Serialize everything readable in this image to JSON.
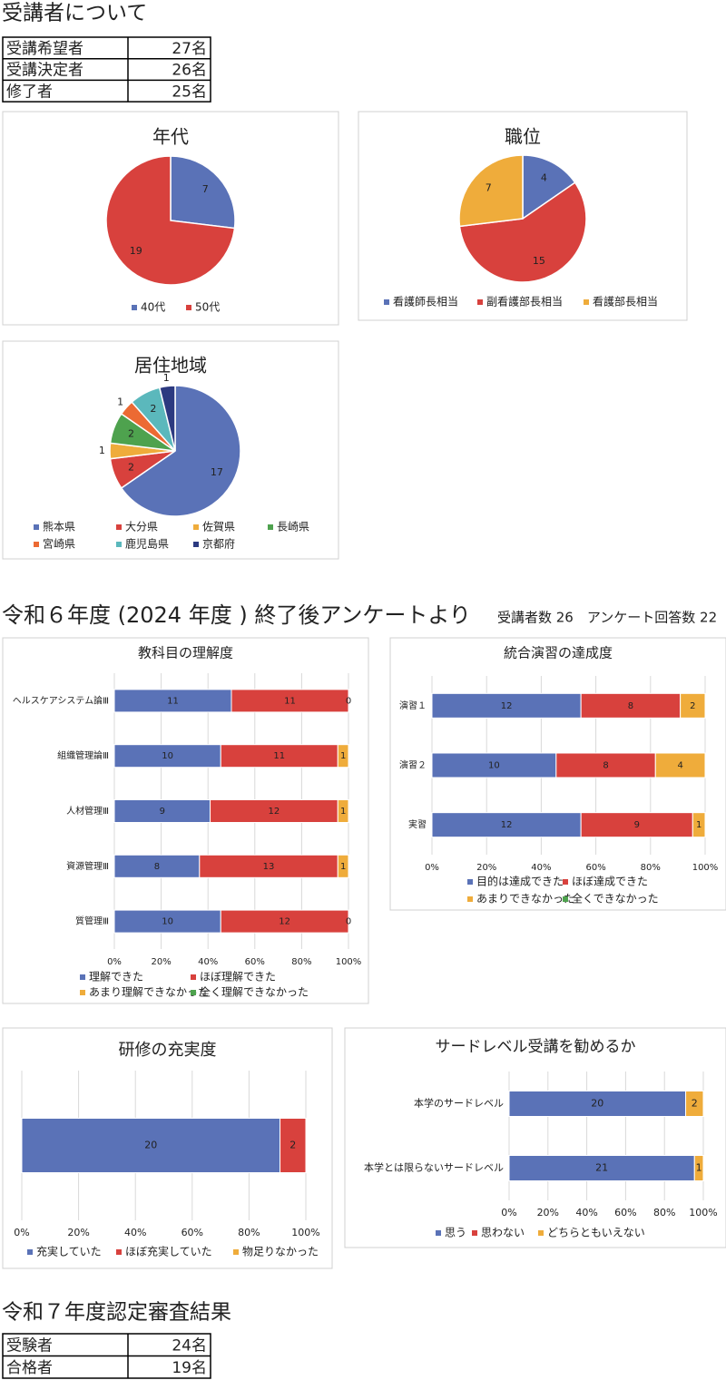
{
  "header": {
    "title": "受講者について"
  },
  "table1": {
    "rows": [
      [
        "受講希望者",
        "27名"
      ],
      [
        "受講決定者",
        "26名"
      ],
      [
        "修了者",
        "25名"
      ]
    ]
  },
  "survey": {
    "title": "令和６年度 (2024 年度 ) 終了後アンケートより",
    "note": "受講者数 26　アンケート回答数 22"
  },
  "table2": {
    "title": "令和７年度認定審査結果",
    "rows": [
      [
        "受験者",
        "24名"
      ],
      [
        "合格者",
        "19名"
      ]
    ]
  },
  "chart_data": [
    {
      "type": "pie",
      "title": "年代",
      "categories": [
        "40代",
        "50代"
      ],
      "values": [
        7,
        19
      ],
      "colors": [
        "#5a72b7",
        "#d8413d"
      ],
      "legend": "bottom"
    },
    {
      "type": "pie",
      "title": "職位",
      "categories": [
        "看護師長相当",
        "副看護部長相当",
        "看護部長相当"
      ],
      "values": [
        4,
        15,
        7
      ],
      "colors": [
        "#5a72b7",
        "#d8413d",
        "#efac3b"
      ],
      "legend": "bottom"
    },
    {
      "type": "pie",
      "title": "居住地域",
      "categories": [
        "熊本県",
        "大分県",
        "佐賀県",
        "長崎県",
        "宮崎県",
        "鹿児島県",
        "京都府"
      ],
      "values": [
        17,
        2,
        1,
        2,
        1,
        2,
        1
      ],
      "colors": [
        "#5a72b7",
        "#d8413d",
        "#efac3b",
        "#4ea24e",
        "#ec6a33",
        "#5bb8bc",
        "#2c3a80"
      ],
      "legend": "bottom"
    },
    {
      "type": "bar",
      "orientation": "horizontal",
      "stacking": "percent",
      "title": "教科目の理解度",
      "categories": [
        "ヘルスケアシステム論Ⅲ",
        "組織管理論Ⅲ",
        "人材管理Ⅲ",
        "資源管理Ⅲ",
        "質管理Ⅲ"
      ],
      "series": [
        {
          "name": "理解できた",
          "color": "#5a72b7",
          "values": [
            11,
            10,
            9,
            8,
            10
          ]
        },
        {
          "name": "ほぼ理解できた",
          "color": "#d8413d",
          "values": [
            11,
            11,
            12,
            13,
            12
          ]
        },
        {
          "name": "あまり理解できなかった",
          "color": "#efac3b",
          "values": [
            0,
            1,
            1,
            1,
            0
          ]
        },
        {
          "name": "全く理解できなかった",
          "color": "#4ea24e",
          "values": [
            null,
            null,
            null,
            null,
            null
          ]
        }
      ],
      "xlim": [
        0,
        100
      ],
      "xticks": [
        {
          "value": 0,
          "label": "0%"
        },
        {
          "value": 20,
          "label": "20%"
        },
        {
          "value": 40,
          "label": "40%"
        },
        {
          "value": 60,
          "label": "60%"
        },
        {
          "value": 80,
          "label": "80%"
        },
        {
          "value": 100,
          "label": "100%"
        }
      ],
      "grid": true,
      "legend": "bottom"
    },
    {
      "type": "bar",
      "orientation": "horizontal",
      "stacking": "percent",
      "title": "統合演習の達成度",
      "categories": [
        "演習１",
        "演習２",
        "実習"
      ],
      "series": [
        {
          "name": "目的は達成できた",
          "color": "#5a72b7",
          "values": [
            12,
            10,
            12
          ]
        },
        {
          "name": "ほぼ達成できた",
          "color": "#d8413d",
          "values": [
            8,
            8,
            9
          ]
        },
        {
          "name": "あまりできなかった",
          "color": "#efac3b",
          "values": [
            2,
            4,
            1
          ]
        },
        {
          "name": "全くできなかった",
          "color": "#4ea24e",
          "values": [
            null,
            null,
            null
          ]
        }
      ],
      "xlim": [
        0,
        100
      ],
      "xticks": [
        {
          "value": 0,
          "label": "0%"
        },
        {
          "value": 20,
          "label": "20%"
        },
        {
          "value": 40,
          "label": "40%"
        },
        {
          "value": 60,
          "label": "60%"
        },
        {
          "value": 80,
          "label": "80%"
        },
        {
          "value": 100,
          "label": "100%"
        }
      ],
      "grid": true,
      "legend": "bottom"
    },
    {
      "type": "bar",
      "orientation": "horizontal",
      "stacking": "percent",
      "title": "研修の充実度",
      "categories": [
        null
      ],
      "series": [
        {
          "name": "充実していた",
          "color": "#5a72b7",
          "values": [
            20
          ]
        },
        {
          "name": "ほぼ充実していた",
          "color": "#d8413d",
          "values": [
            2
          ]
        },
        {
          "name": "物足りなかった",
          "color": "#efac3b",
          "values": [
            null
          ]
        }
      ],
      "xlim": [
        0,
        100
      ],
      "xticks": [
        {
          "value": 0,
          "label": "0%"
        },
        {
          "value": 20,
          "label": "20%"
        },
        {
          "value": 40,
          "label": "40%"
        },
        {
          "value": 60,
          "label": "60%"
        },
        {
          "value": 80,
          "label": "80%"
        },
        {
          "value": 100,
          "label": "100%"
        }
      ],
      "grid": true,
      "legend": "bottom"
    },
    {
      "type": "bar",
      "orientation": "horizontal",
      "stacking": "percent",
      "title": "サードレベル受講を勧めるか",
      "categories": [
        "本学のサードレベル",
        "本学とは限らないサードレベル"
      ],
      "series": [
        {
          "name": "思う",
          "color": "#5a72b7",
          "values": [
            20,
            21
          ]
        },
        {
          "name": "思わない",
          "color": "#d8413d",
          "values": [
            null,
            null
          ]
        },
        {
          "name": "どちらともいえない",
          "color": "#efac3b",
          "values": [
            2,
            1
          ]
        }
      ],
      "xlim": [
        0,
        100
      ],
      "xticks": [
        {
          "value": 0,
          "label": "0%"
        },
        {
          "value": 20,
          "label": "20%"
        },
        {
          "value": 40,
          "label": "40%"
        },
        {
          "value": 60,
          "label": "60%"
        },
        {
          "value": 80,
          "label": "80%"
        },
        {
          "value": 100,
          "label": "100%"
        }
      ],
      "grid": true,
      "legend": "bottom"
    }
  ]
}
